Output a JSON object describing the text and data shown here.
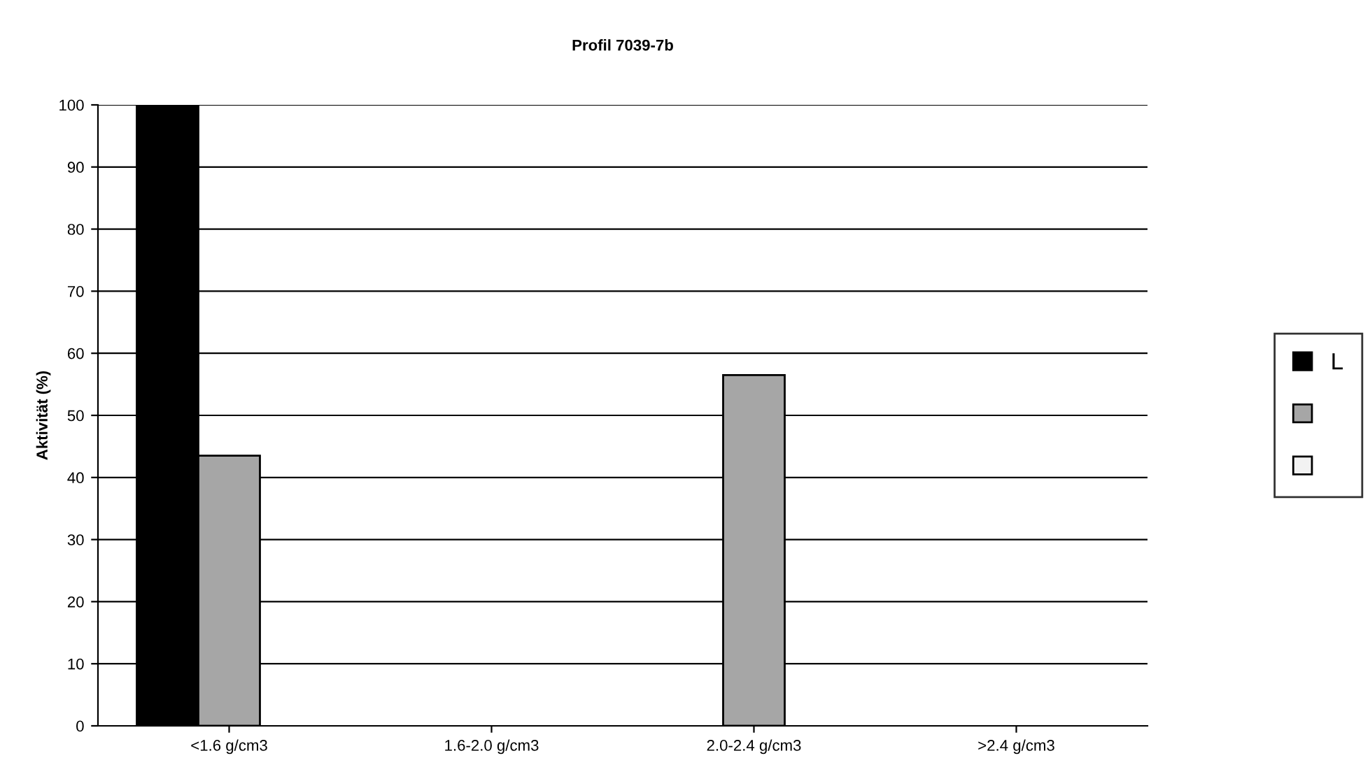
{
  "chart_data": {
    "type": "bar",
    "title": "Profil 7039-7b",
    "ylabel": "Aktivität (%)",
    "categories": [
      "<1.6 g/cm3",
      "1.6-2.0 g/cm3",
      "2.0-2.4 g/cm3",
      ">2.4 g/cm3"
    ],
    "series": [
      {
        "name": "L",
        "color": "#000000",
        "values": [
          100,
          0,
          0,
          0
        ]
      },
      {
        "color": "#a6a6a6",
        "values": [
          43.5,
          0,
          56.5,
          0
        ]
      },
      {
        "color": "#f2f2f2",
        "values": [
          0,
          0,
          0,
          0
        ]
      }
    ],
    "ylim": [
      0,
      100
    ],
    "yticks": [
      0,
      10,
      20,
      30,
      40,
      50,
      60,
      70,
      80,
      90,
      100
    ],
    "grid": "y",
    "legend": "right"
  }
}
